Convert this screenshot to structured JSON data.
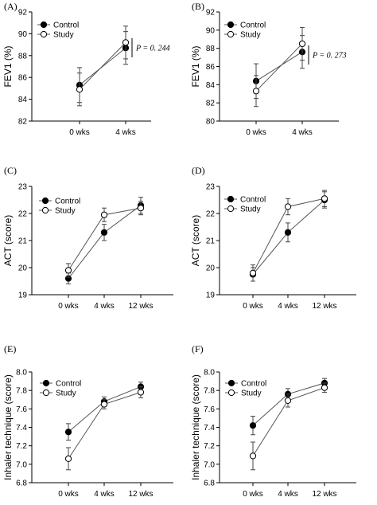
{
  "series_style": {
    "Control": {
      "fill": "#000000"
    },
    "Study": {
      "fill": "#ffffff"
    }
  },
  "chart_data": [
    {
      "panel": "(A)",
      "type": "line",
      "ylabel": "FEV1 (%)",
      "ylim": [
        82,
        92
      ],
      "yticks": [
        82,
        84,
        86,
        88,
        90,
        92
      ],
      "categories": [
        "0 wks",
        "4 wks"
      ],
      "legend_position": "top-left",
      "series": [
        {
          "name": "Control",
          "values": [
            85.3,
            88.7
          ],
          "err": [
            1.6,
            1.5
          ]
        },
        {
          "name": "Study",
          "values": [
            84.9,
            89.2
          ],
          "err": [
            1.5,
            1.5
          ]
        }
      ],
      "annotation": "P = 0. 244"
    },
    {
      "panel": "(B)",
      "type": "line",
      "ylabel": "FEV1 (%)",
      "ylim": [
        80,
        92
      ],
      "yticks": [
        80,
        82,
        84,
        86,
        88,
        90,
        92
      ],
      "categories": [
        "0 wks",
        "4 wks"
      ],
      "legend_position": "top-left",
      "series": [
        {
          "name": "Control",
          "values": [
            84.4,
            87.6
          ],
          "err": [
            1.9,
            1.8
          ]
        },
        {
          "name": "Study",
          "values": [
            83.3,
            88.5
          ],
          "err": [
            1.7,
            1.8
          ]
        }
      ],
      "annotation": "P = 0. 273"
    },
    {
      "panel": "(C)",
      "type": "line",
      "ylabel": "ACT (score)",
      "ylim": [
        19,
        23
      ],
      "yticks": [
        19,
        20,
        21,
        22,
        23
      ],
      "categories": [
        "0 wks",
        "4 wks",
        "12 wks"
      ],
      "legend_position": "top-left",
      "series": [
        {
          "name": "Control",
          "values": [
            19.6,
            21.3,
            22.3
          ],
          "err": [
            0.2,
            0.3,
            0.3
          ]
        },
        {
          "name": "Study",
          "values": [
            19.9,
            21.95,
            22.2
          ],
          "err": [
            0.25,
            0.25,
            0.25
          ]
        }
      ]
    },
    {
      "panel": "(D)",
      "type": "line",
      "ylabel": "ACT (score)",
      "ylim": [
        19,
        23
      ],
      "yticks": [
        19,
        20,
        21,
        22,
        23
      ],
      "categories": [
        "0 wks",
        "4 wks",
        "12 wks"
      ],
      "legend_position": "top-left",
      "series": [
        {
          "name": "Control",
          "values": [
            19.75,
            21.3,
            22.5
          ],
          "err": [
            0.25,
            0.35,
            0.3
          ]
        },
        {
          "name": "Study",
          "values": [
            19.8,
            22.25,
            22.55
          ],
          "err": [
            0.3,
            0.3,
            0.3
          ]
        }
      ]
    },
    {
      "panel": "(E)",
      "type": "line",
      "ylabel": "Inhaler technique (score)",
      "ylim": [
        6.8,
        8.0
      ],
      "yticks": [
        6.8,
        7.0,
        7.2,
        7.4,
        7.6,
        7.8,
        8.0
      ],
      "categories": [
        "0 wks",
        "4 wks",
        "12 wks"
      ],
      "legend_position": "top-left",
      "series": [
        {
          "name": "Control",
          "values": [
            7.35,
            7.68,
            7.84
          ],
          "err": [
            0.09,
            0.05,
            0.05
          ]
        },
        {
          "name": "Study",
          "values": [
            7.06,
            7.65,
            7.78
          ],
          "err": [
            0.12,
            0.05,
            0.06
          ]
        }
      ]
    },
    {
      "panel": "(F)",
      "type": "line",
      "ylabel": "Inhaler technique (score)",
      "ylim": [
        6.8,
        8.0
      ],
      "yticks": [
        6.8,
        7.0,
        7.2,
        7.4,
        7.6,
        7.8,
        8.0
      ],
      "categories": [
        "0 wks",
        "4 wks",
        "12 wks"
      ],
      "legend_position": "top-left",
      "series": [
        {
          "name": "Control",
          "values": [
            7.42,
            7.76,
            7.88
          ],
          "err": [
            0.1,
            0.06,
            0.05
          ]
        },
        {
          "name": "Study",
          "values": [
            7.09,
            7.69,
            7.83
          ],
          "err": [
            0.15,
            0.07,
            0.05
          ]
        }
      ]
    }
  ]
}
